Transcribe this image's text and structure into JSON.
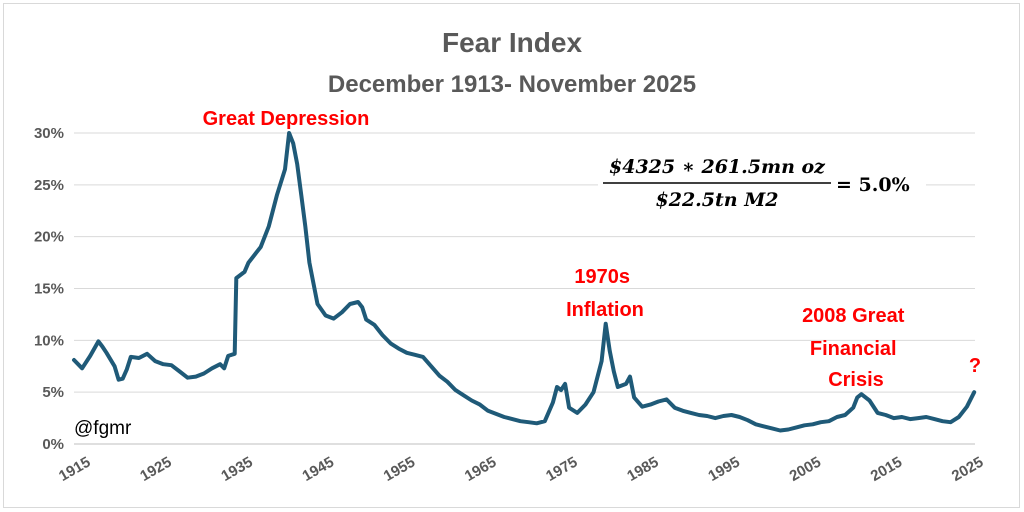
{
  "chart_data": {
    "type": "line",
    "title": "Fear Index",
    "subtitle": "December 1913- November 2025",
    "xlabel": "",
    "ylabel": "",
    "xlim": [
      1915,
      2026
    ],
    "ylim": [
      0,
      0.3
    ],
    "yticks": [
      "0%",
      "5%",
      "10%",
      "15%",
      "20%",
      "25%",
      "30%"
    ],
    "xticks": [
      "1915",
      "1925",
      "1935",
      "1945",
      "1955",
      "1965",
      "1975",
      "1985",
      "1995",
      "2005",
      "2015",
      "2025"
    ],
    "grid": "horizontal",
    "series": [
      {
        "color": "#1f5a78",
        "x": [
          1915,
          1916,
          1917,
          1918,
          1918.5,
          1919,
          1920,
          1920.5,
          1921,
          1921.5,
          1922,
          1923,
          1924,
          1925,
          1926,
          1927,
          1928,
          1929,
          1930,
          1931,
          1932,
          1933,
          1933.5,
          1934,
          1934.8,
          1935,
          1935.5,
          1936,
          1936.5,
          1937,
          1937.5,
          1938,
          1939,
          1940,
          1941,
          1941.5,
          1942,
          1942.5,
          1943,
          1943.5,
          1944,
          1945,
          1946,
          1947,
          1948,
          1949,
          1950,
          1950.5,
          1951,
          1952,
          1953,
          1954,
          1955,
          1956,
          1957,
          1958,
          1959,
          1960,
          1961,
          1962,
          1963,
          1964,
          1965,
          1966,
          1967,
          1968,
          1969,
          1970,
          1971,
          1972,
          1973,
          1974,
          1974.5,
          1975,
          1975.5,
          1976,
          1977,
          1978,
          1979,
          1980,
          1980.5,
          1981,
          1981.5,
          1982,
          1983,
          1983.5,
          1984,
          1985,
          1986,
          1987,
          1988,
          1989,
          1990,
          1991,
          1992,
          1993,
          1994,
          1995,
          1996,
          1997,
          1998,
          1999,
          2000,
          2001,
          2002,
          2003,
          2004,
          2005,
          2006,
          2007,
          2008,
          2009,
          2010,
          2011,
          2011.5,
          2012,
          2013,
          2014,
          2015,
          2016,
          2017,
          2018,
          2019,
          2020,
          2021,
          2022,
          2023,
          2024,
          2025,
          2025.9
        ],
        "y": [
          0.081,
          0.073,
          0.085,
          0.099,
          0.094,
          0.088,
          0.075,
          0.062,
          0.063,
          0.072,
          0.084,
          0.083,
          0.087,
          0.08,
          0.077,
          0.076,
          0.07,
          0.064,
          0.065,
          0.068,
          0.073,
          0.077,
          0.073,
          0.085,
          0.087,
          0.16,
          0.163,
          0.166,
          0.175,
          0.18,
          0.185,
          0.19,
          0.21,
          0.24,
          0.265,
          0.3,
          0.29,
          0.27,
          0.24,
          0.21,
          0.175,
          0.135,
          0.124,
          0.121,
          0.127,
          0.135,
          0.137,
          0.132,
          0.12,
          0.115,
          0.105,
          0.097,
          0.092,
          0.088,
          0.086,
          0.084,
          0.075,
          0.066,
          0.06,
          0.052,
          0.047,
          0.042,
          0.038,
          0.032,
          0.029,
          0.026,
          0.024,
          0.022,
          0.021,
          0.02,
          0.022,
          0.04,
          0.055,
          0.052,
          0.058,
          0.035,
          0.03,
          0.038,
          0.05,
          0.08,
          0.116,
          0.09,
          0.07,
          0.055,
          0.058,
          0.065,
          0.045,
          0.036,
          0.038,
          0.041,
          0.043,
          0.035,
          0.032,
          0.03,
          0.028,
          0.027,
          0.025,
          0.027,
          0.028,
          0.026,
          0.023,
          0.019,
          0.017,
          0.015,
          0.013,
          0.014,
          0.016,
          0.018,
          0.019,
          0.021,
          0.022,
          0.026,
          0.028,
          0.035,
          0.045,
          0.048,
          0.042,
          0.03,
          0.028,
          0.025,
          0.026,
          0.024,
          0.025,
          0.026,
          0.024,
          0.022,
          0.021,
          0.026,
          0.036,
          0.05
        ]
      }
    ],
    "annotations": [
      {
        "text": "Great Depression",
        "color": "#ff0000"
      },
      {
        "text_lines": [
          "1970s",
          "Inflation"
        ],
        "color": "#ff0000"
      },
      {
        "text_lines": [
          "2008 Great",
          "Financial",
          "Crisis"
        ],
        "color": "#ff0000"
      },
      {
        "text": "?",
        "color": "#ff0000"
      }
    ],
    "handle": "@fgmr",
    "formula": {
      "numerator": "$4325 ∗ 261.5mn oz",
      "denominator": "$22.5tn M2",
      "result": "= 5.0%"
    }
  }
}
